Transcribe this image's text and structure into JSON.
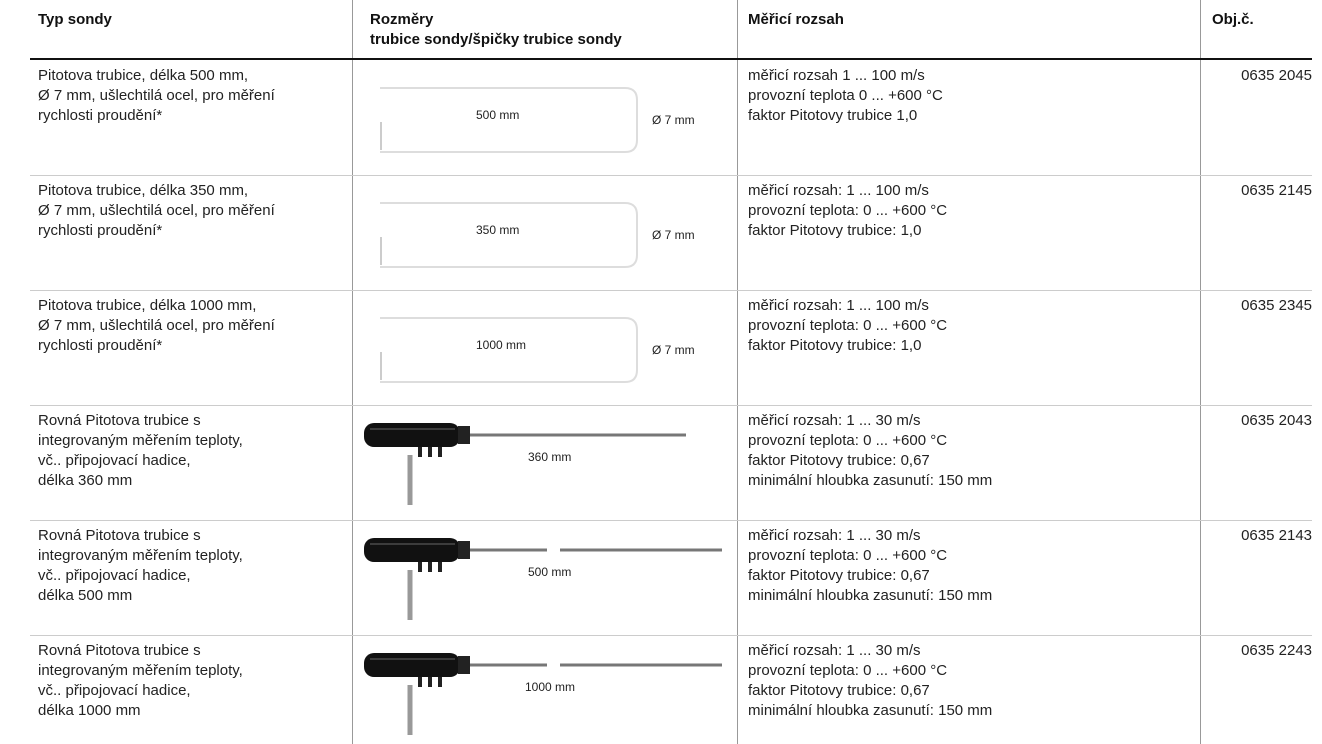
{
  "header": {
    "columns": [
      "Typ sondy",
      [
        "Rozměry",
        "trubice sondy/špičky trubice sondy"
      ],
      "Měřicí rozsah",
      "Obj.č."
    ]
  },
  "table": {
    "rows": [
      {
        "type": [
          "Pitotova trubice, délka 500 mm,",
          "Ø 7 mm, ušlechtilá ocel, pro měření",
          "rychlosti proudění*"
        ],
        "image": [
          "500 mm",
          "Ø 7 mm"
        ],
        "range": [
          "měřicí rozsah 1 ... 100 m/s",
          "provozní teplota 0 ... +600 °C",
          "faktor Pitotovy trubice 1,0"
        ],
        "order": "0635 2045"
      },
      {
        "type": [
          "Pitotova trubice, délka 350 mm,",
          "Ø 7 mm, ušlechtilá ocel, pro měření",
          "rychlosti proudění*"
        ],
        "image": [
          "350 mm",
          "Ø 7 mm"
        ],
        "range": [
          "měřicí rozsah: 1 ... 100 m/s",
          "provozní teplota: 0 ... +600 °C",
          "faktor Pitotovy trubice: 1,0"
        ],
        "order": "0635 2145"
      },
      {
        "type": [
          "Pitotova trubice, délka 1000 mm,",
          "Ø 7 mm, ušlechtilá ocel, pro měření",
          "rychlosti proudění*"
        ],
        "image": [
          "1000 mm",
          "Ø 7 mm"
        ],
        "range": [
          "měřicí rozsah: 1 ... 100 m/s",
          "provozní teplota: 0 ... +600 °C",
          "faktor Pitotovy trubice: 1,0"
        ],
        "order": "0635 2345"
      },
      {
        "type": [
          "Rovná Pitotova trubice s",
          "integrovaným měřením teploty,",
          "vč.. připojovací hadice,",
          "délka 360 mm"
        ],
        "image": [
          "360 mm"
        ],
        "range": [
          "měřicí rozsah: 1 ... 30 m/s",
          "provozní teplota: 0 ... +600 °C",
          "faktor Pitotovy trubice: 0,67",
          "minimální hloubka zasunutí: 150 mm"
        ],
        "order": "0635 2043"
      },
      {
        "type": [
          "Rovná Pitotova trubice s",
          "integrovaným měřením teploty,",
          "vč.. připojovací hadice,",
          "délka 500 mm"
        ],
        "image": [
          "500 mm"
        ],
        "range": [
          "měřicí rozsah: 1 ... 30 m/s",
          "provozní teplota: 0 ... +600 °C",
          "faktor Pitotovy trubice: 0,67",
          "minimální hloubka zasunutí: 150 mm"
        ],
        "order": "0635 2143"
      },
      {
        "type": [
          "Rovná Pitotova trubice s",
          "integrovaným měřením teploty,",
          "vč.. připojovací hadice,",
          "délka 1000 mm"
        ],
        "image": [
          "1000 mm"
        ],
        "range": [
          "měřicí rozsah: 1 ... 30 m/s",
          "provozní teplota: 0 ... +600 °C",
          "faktor Pitotovy trubice: 0,67",
          "minimální hloubka zasunutí: 150 mm"
        ],
        "order": "0635 2243"
      }
    ]
  }
}
